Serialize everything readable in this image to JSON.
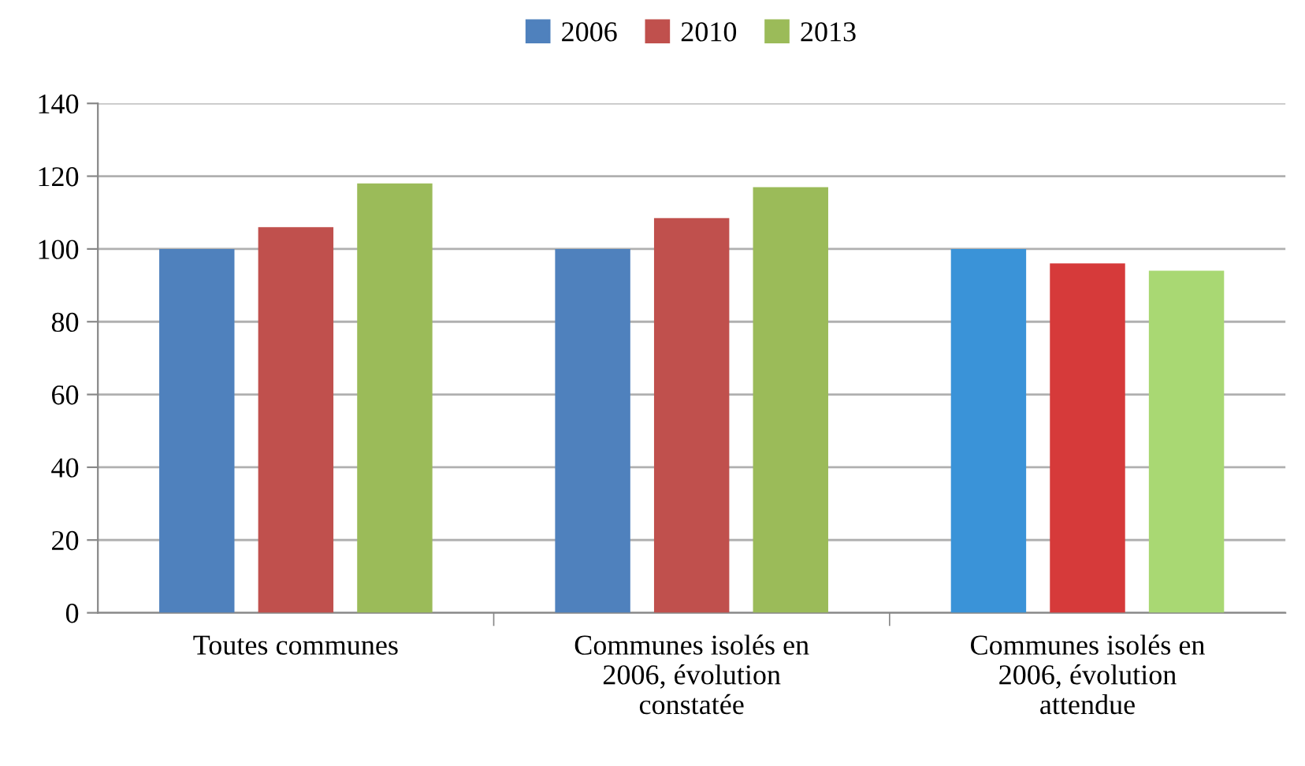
{
  "chart_data": {
    "type": "bar",
    "categories": [
      "Toutes communes",
      "Communes isolés en\n2006, évolution\nconstatée",
      "Communes isolés en\n2006, évolution\nattendue"
    ],
    "series": [
      {
        "name": "2006",
        "color": "#4f81bd",
        "colors": [
          "#4f81bd",
          "#4f81bd",
          "#3a93d8"
        ],
        "values": [
          100,
          100,
          100
        ]
      },
      {
        "name": "2010",
        "color": "#c0504d",
        "colors": [
          "#c0504d",
          "#c0504d",
          "#d63a3a"
        ],
        "values": [
          106,
          108.5,
          96
        ]
      },
      {
        "name": "2013",
        "color": "#9bbb59",
        "colors": [
          "#9bbb59",
          "#9bbb59",
          "#a9d873"
        ],
        "values": [
          118,
          117,
          94
        ]
      }
    ],
    "ylim": [
      0,
      140
    ],
    "yticks": [
      0,
      20,
      40,
      60,
      80,
      100,
      120,
      140
    ],
    "grid": "y",
    "legend": "top"
  }
}
